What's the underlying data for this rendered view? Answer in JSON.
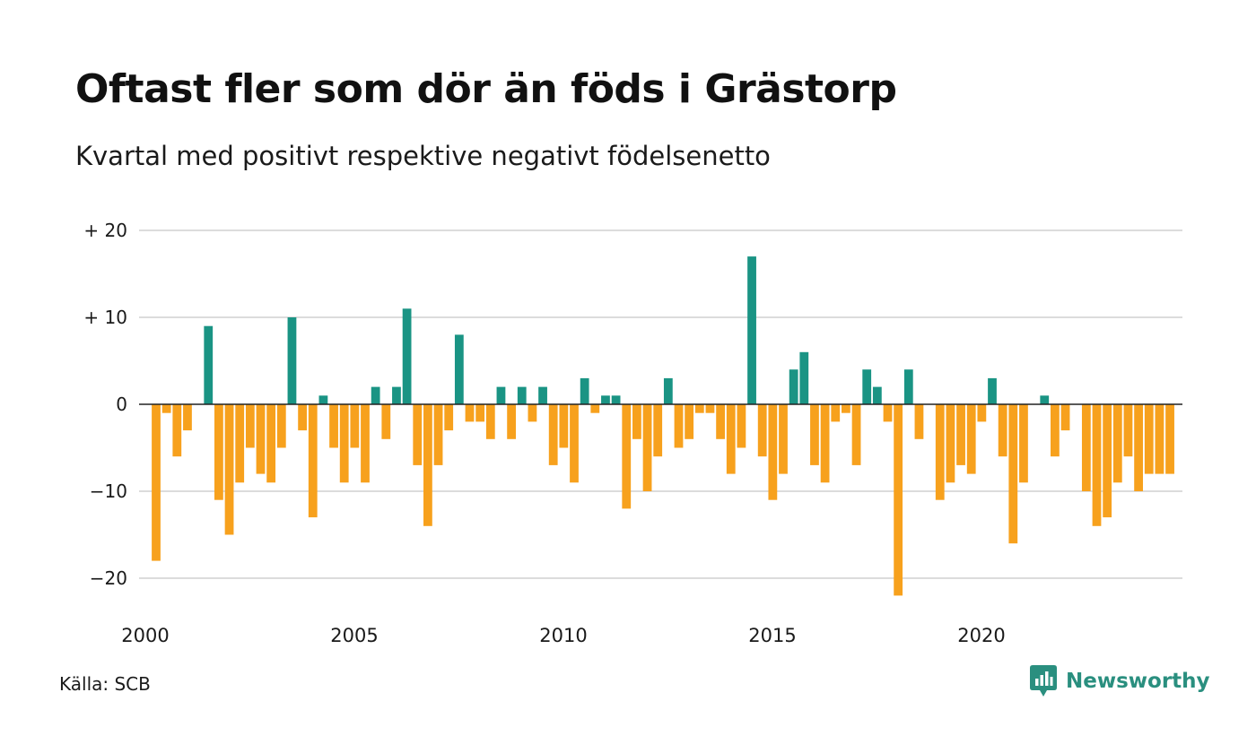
{
  "title": "Oftast fler som dör än föds i Grästorp",
  "subtitle": "Kvartal med positivt respektive negativt födelsenetto",
  "source": "Källa: SCB",
  "brand": {
    "name": "Newsworthy",
    "icon": "newsworthy-logo-icon"
  },
  "colors": {
    "positive": "#1a9484",
    "negative": "#f7a11d",
    "grid": "#dcdcdc",
    "zero": "#222222"
  },
  "chart_data": {
    "type": "bar",
    "x_start_year": 2000,
    "periods_per_year": 4,
    "values": [
      -18,
      -1,
      -6,
      -3,
      0,
      9,
      -11,
      -15,
      -9,
      -5,
      -8,
      -9,
      -5,
      10,
      -3,
      -13,
      1,
      -5,
      -9,
      -5,
      -9,
      2,
      -4,
      2,
      11,
      -7,
      -14,
      -7,
      -3,
      8,
      -2,
      -2,
      -4,
      2,
      -4,
      2,
      -2,
      2,
      -7,
      -5,
      -9,
      3,
      -1,
      1,
      1,
      -12,
      -4,
      -10,
      -6,
      3,
      -5,
      -4,
      -1,
      -1,
      -4,
      -8,
      -5,
      17,
      -6,
      -11,
      -8,
      4,
      6,
      -7,
      -9,
      -2,
      -1,
      -7,
      4,
      2,
      -2,
      -22,
      4,
      -4,
      0,
      -11,
      -9,
      -7,
      -8,
      -2,
      3,
      -6,
      -16,
      -9,
      0,
      1,
      -6,
      -3,
      0,
      -10,
      -14,
      -13,
      -9,
      -6,
      -10,
      -8,
      -8,
      -8
    ],
    "ylim": [
      -24,
      20
    ],
    "yticks": [
      {
        "value": 20,
        "label": "+ 20"
      },
      {
        "value": 10,
        "label": "+ 10"
      },
      {
        "value": 0,
        "label": "0"
      },
      {
        "value": -10,
        "label": "−10"
      },
      {
        "value": -20,
        "label": "−20"
      }
    ],
    "xticks": [
      {
        "value": 2000,
        "label": "2000"
      },
      {
        "value": 2005,
        "label": "2005"
      },
      {
        "value": 2010,
        "label": "2010"
      },
      {
        "value": 2015,
        "label": "2015"
      },
      {
        "value": 2020,
        "label": "2020"
      }
    ],
    "xlabel": "",
    "ylabel": "",
    "grid": true,
    "legend": "none"
  }
}
